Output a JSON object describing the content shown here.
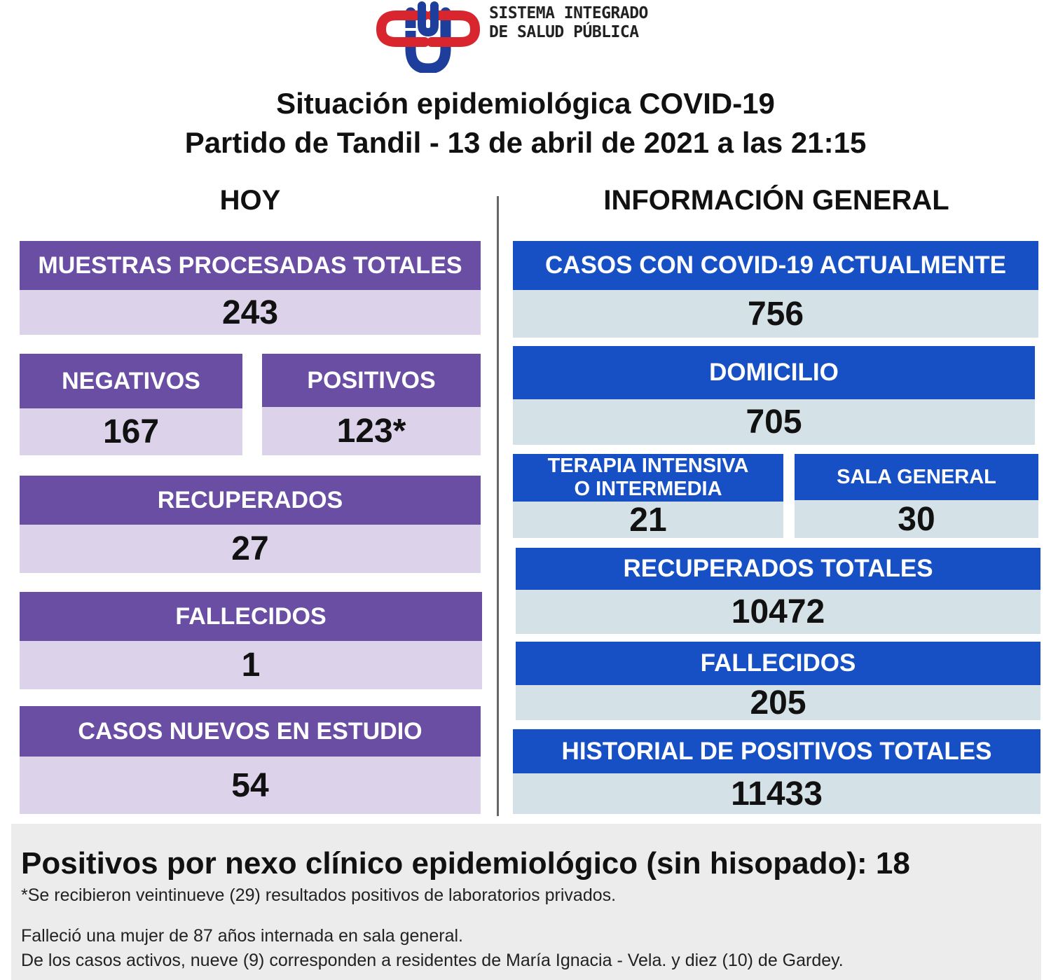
{
  "header": {
    "org_name_line1": "SISTEMA INTEGRADO",
    "org_name_line2": "DE SALUD PÚBLICA",
    "title_line1": "Situación epidemiológica COVID-19",
    "title_line2": "Partido de Tandil - 13 de abril de 2021 a las 21:15",
    "logo_colors": {
      "red": "#d9252e",
      "blue": "#1d3e9a"
    }
  },
  "hoy": {
    "heading": "HOY",
    "muestras": {
      "label": "MUESTRAS PROCESADAS TOTALES",
      "value": "243"
    },
    "negativos": {
      "label": "NEGATIVOS",
      "value": "167"
    },
    "positivos": {
      "label": "POSITIVOS",
      "value": "123*"
    },
    "recuperados": {
      "label": "RECUPERADOS",
      "value": "27"
    },
    "fallecidos": {
      "label": "FALLECIDOS",
      "value": "1"
    },
    "casos_nuevos": {
      "label": "CASOS NUEVOS EN ESTUDIO",
      "value": "54"
    }
  },
  "general": {
    "heading": "INFORMACIÓN GENERAL",
    "casos_actuales": {
      "label": "CASOS CON COVID-19 ACTUALMENTE",
      "value": "756"
    },
    "domicilio": {
      "label": "DOMICILIO",
      "value": "705"
    },
    "terapia": {
      "label_line1": "TERAPIA INTENSIVA",
      "label_line2": "O INTERMEDIA",
      "value": "21"
    },
    "sala_general": {
      "label": "SALA GENERAL",
      "value": "30"
    },
    "recuperados_totales": {
      "label": "RECUPERADOS TOTALES",
      "value": "10472"
    },
    "fallecidos": {
      "label": "FALLECIDOS",
      "value": "205"
    },
    "historial": {
      "label": "HISTORIAL DE POSITIVOS TOTALES",
      "value": "11433"
    }
  },
  "footer": {
    "nexo": "Positivos por nexo clínico epidemiológico (sin hisopado): 18",
    "note1": "*Se recibieron veintinueve (29) resultados positivos de laboratorios privados.",
    "note2": "Falleció una mujer de 87 años internada en sala general.",
    "note3": "De los casos activos, nueve (9) corresponden a residentes de María Ignacia - Vela. y diez (10) de Gardey."
  },
  "colors": {
    "purple_header": "#6a4ea4",
    "purple_value": "#dcd2ea",
    "blue_header": "#1750c4",
    "blue_value": "#d4e2e8",
    "footer_bg": "#ececec"
  }
}
